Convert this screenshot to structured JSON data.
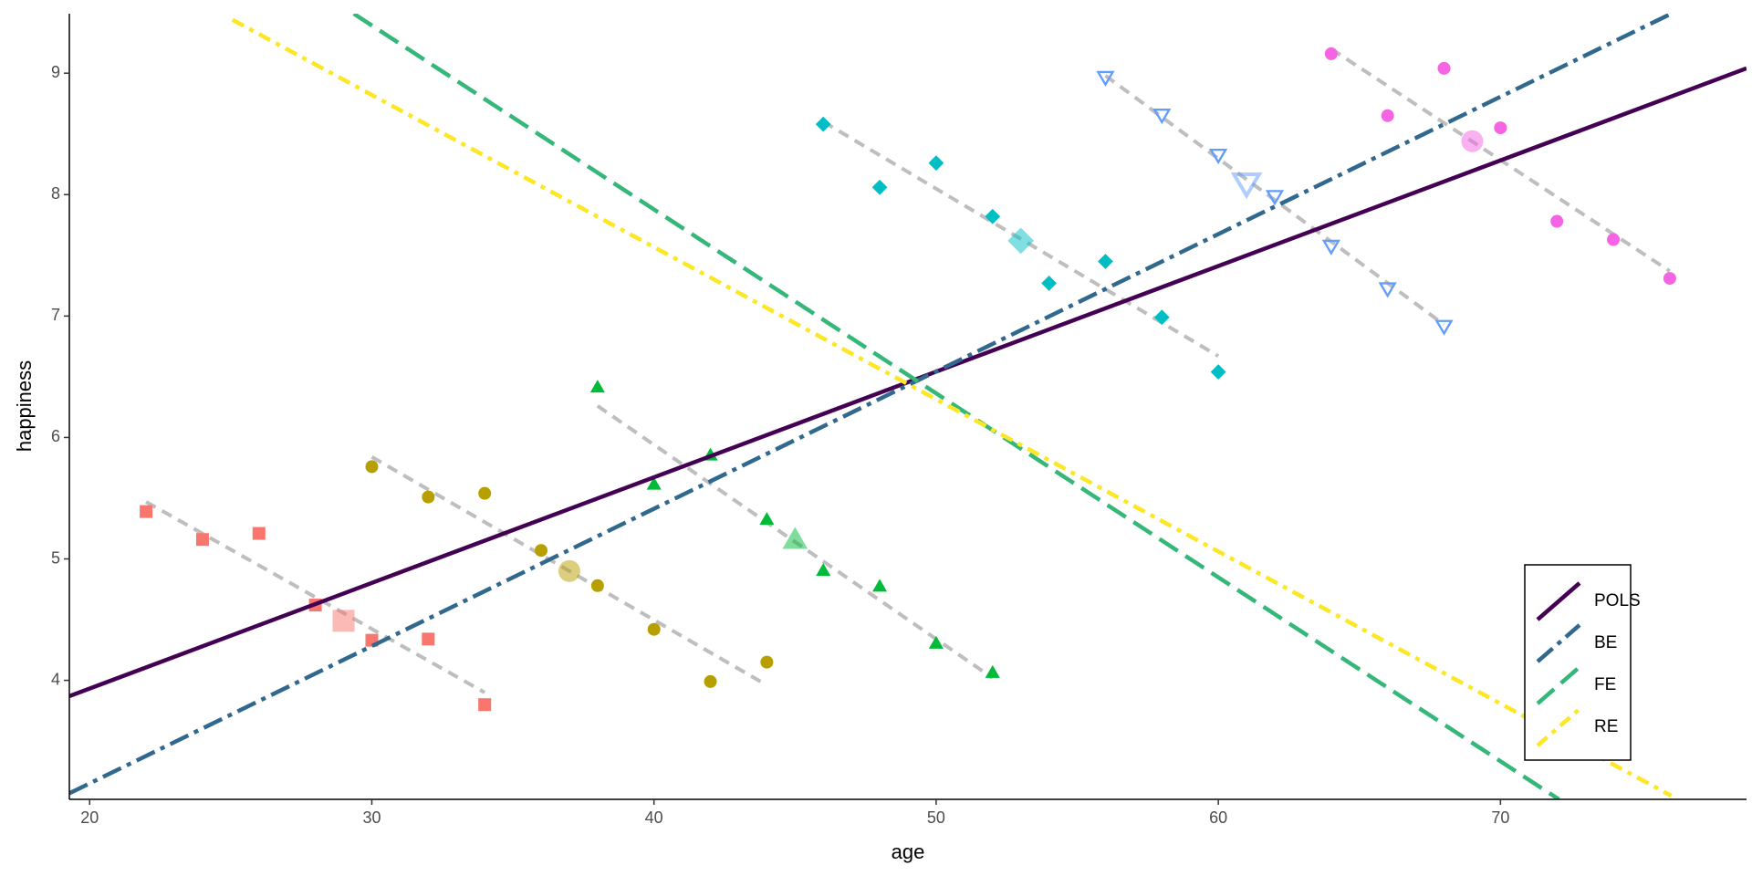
{
  "chart_data": {
    "type": "scatter",
    "xlabel": "age",
    "ylabel": "happiness",
    "xlim": [
      19.28,
      78.72
    ],
    "ylim": [
      3.02,
      9.49
    ],
    "xticks": [
      20,
      30,
      40,
      50,
      60,
      70
    ],
    "yticks": [
      4,
      5,
      6,
      7,
      8,
      9
    ],
    "legend_position": "bottom-right",
    "groups": [
      {
        "color": "#F8766D",
        "marker": "square",
        "x": [
          22,
          24,
          26,
          28,
          30,
          32,
          34
        ],
        "y": [
          5.39,
          5.16,
          5.21,
          4.62,
          4.33,
          4.34,
          3.8
        ],
        "mean": {
          "x": 29,
          "y": 4.49
        },
        "fit": {
          "x": [
            22,
            34
          ],
          "y": [
            5.47,
            3.9
          ]
        }
      },
      {
        "color": "#B79F00",
        "marker": "circle",
        "x": [
          30,
          32,
          34,
          36,
          38,
          40,
          42,
          44
        ],
        "y": [
          5.76,
          5.51,
          5.54,
          5.07,
          4.78,
          4.42,
          3.99,
          4.15
        ],
        "mean": {
          "x": 37,
          "y": 4.9
        },
        "fit": {
          "x": [
            30,
            44
          ],
          "y": [
            5.84,
            3.96
          ]
        }
      },
      {
        "color": "#00BA38",
        "marker": "triangle",
        "x": [
          38,
          40,
          42,
          44,
          46,
          48,
          50,
          52
        ],
        "y": [
          6.41,
          5.61,
          5.85,
          5.32,
          4.9,
          4.77,
          4.3,
          4.06
        ],
        "mean": {
          "x": 45,
          "y": 5.15
        },
        "fit": {
          "x": [
            38,
            52
          ],
          "y": [
            6.26,
            4.02
          ]
        }
      },
      {
        "color": "#00BFC4",
        "marker": "diamond",
        "x": [
          46,
          48,
          50,
          52,
          54,
          56,
          58,
          60
        ],
        "y": [
          8.58,
          8.06,
          8.26,
          7.82,
          7.27,
          7.45,
          6.99,
          6.54
        ],
        "mean": {
          "x": 53,
          "y": 7.62
        },
        "fit": {
          "x": [
            46,
            60
          ],
          "y": [
            8.6,
            6.67
          ]
        }
      },
      {
        "color": "#619CFF",
        "marker": "open-triangle-down",
        "x": [
          56,
          58,
          60,
          62,
          64,
          66,
          68
        ],
        "y": [
          8.97,
          8.66,
          8.33,
          7.99,
          7.58,
          7.23,
          6.92
        ],
        "mean": {
          "x": 61,
          "y": 8.1
        },
        "fit": {
          "x": [
            56,
            68
          ],
          "y": [
            8.98,
            6.93
          ]
        }
      },
      {
        "color": "#F564E3",
        "marker": "circle",
        "x": [
          64,
          66,
          68,
          70,
          72,
          74,
          76
        ],
        "y": [
          9.16,
          8.65,
          9.04,
          8.55,
          7.78,
          7.63,
          7.31
        ],
        "mean": {
          "x": 69,
          "y": 8.44
        },
        "fit": {
          "x": [
            64,
            76
          ],
          "y": [
            9.2,
            7.37
          ]
        }
      }
    ],
    "fit_color": "#BEBEBE",
    "lines": [
      {
        "name": "POLS",
        "color": "#440154",
        "dash": "solid",
        "x": [
          19.28,
          78.72
        ],
        "y": [
          3.87,
          9.04
        ]
      },
      {
        "name": "BE",
        "color": "#31688E",
        "dash": "longdash-dot",
        "x": [
          19.28,
          76.05
        ],
        "y": [
          3.07,
          9.49
        ]
      },
      {
        "name": "FE",
        "color": "#35B779",
        "dash": "longdash",
        "x": [
          29.36,
          72.07
        ],
        "y": [
          9.49,
          3.02
        ]
      },
      {
        "name": "RE",
        "color": "#FDE725",
        "dash": "dotdash",
        "x": [
          25.06,
          76.05
        ],
        "y": [
          9.44,
          3.05
        ]
      }
    ]
  }
}
